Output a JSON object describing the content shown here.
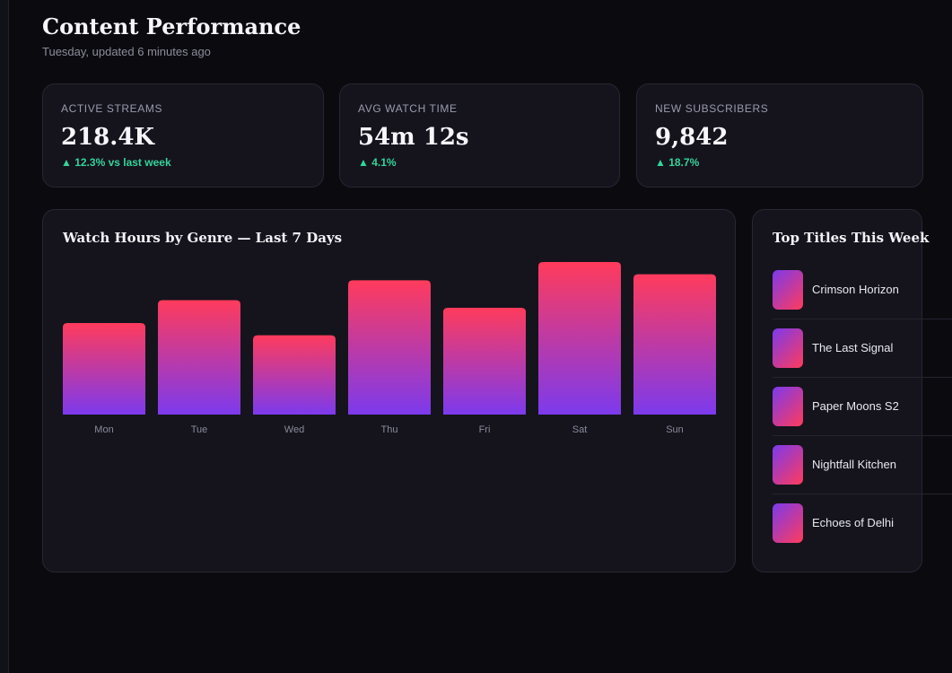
{
  "header": {
    "title": "Content Performance",
    "subtitle": "Tuesday, updated 6 minutes ago"
  },
  "kpis": [
    {
      "label": "ACTIVE STREAMS",
      "value": "218.4K",
      "delta": "▲ 12.3% vs last week"
    },
    {
      "label": "AVG WATCH TIME",
      "value": "54m 12s",
      "delta": "▲ 4.1%"
    },
    {
      "label": "NEW SUBSCRIBERS",
      "value": "9,842",
      "delta": "▲ 18.7%"
    }
  ],
  "chart_card": {
    "title": "Watch Hours by Genre — Last 7 Days"
  },
  "chart_data": {
    "type": "bar",
    "title": "Watch Hours by Genre — Last 7 Days",
    "categories": [
      "Mon",
      "Tue",
      "Wed",
      "Thu",
      "Fri",
      "Sat",
      "Sun"
    ],
    "values": [
      60,
      75,
      52,
      88,
      70,
      100,
      92
    ],
    "ylim": [
      0,
      100
    ],
    "grid": false,
    "colors": {
      "bar_top": "#ff3b5c",
      "bar_bottom": "#7c3aed"
    }
  },
  "top_titles": {
    "title": "Top Titles This Week",
    "items": [
      {
        "name": "Crimson Horizon"
      },
      {
        "name": "The Last Signal"
      },
      {
        "name": "Paper Moons S2"
      },
      {
        "name": "Nightfall Kitchen"
      },
      {
        "name": "Echoes of Delhi"
      }
    ]
  },
  "colors": {
    "background": "#0b0b0f",
    "card": "#15141d",
    "positive": "#34d399",
    "accent_pink": "#ff3b5c",
    "accent_purple": "#7c3aed"
  }
}
